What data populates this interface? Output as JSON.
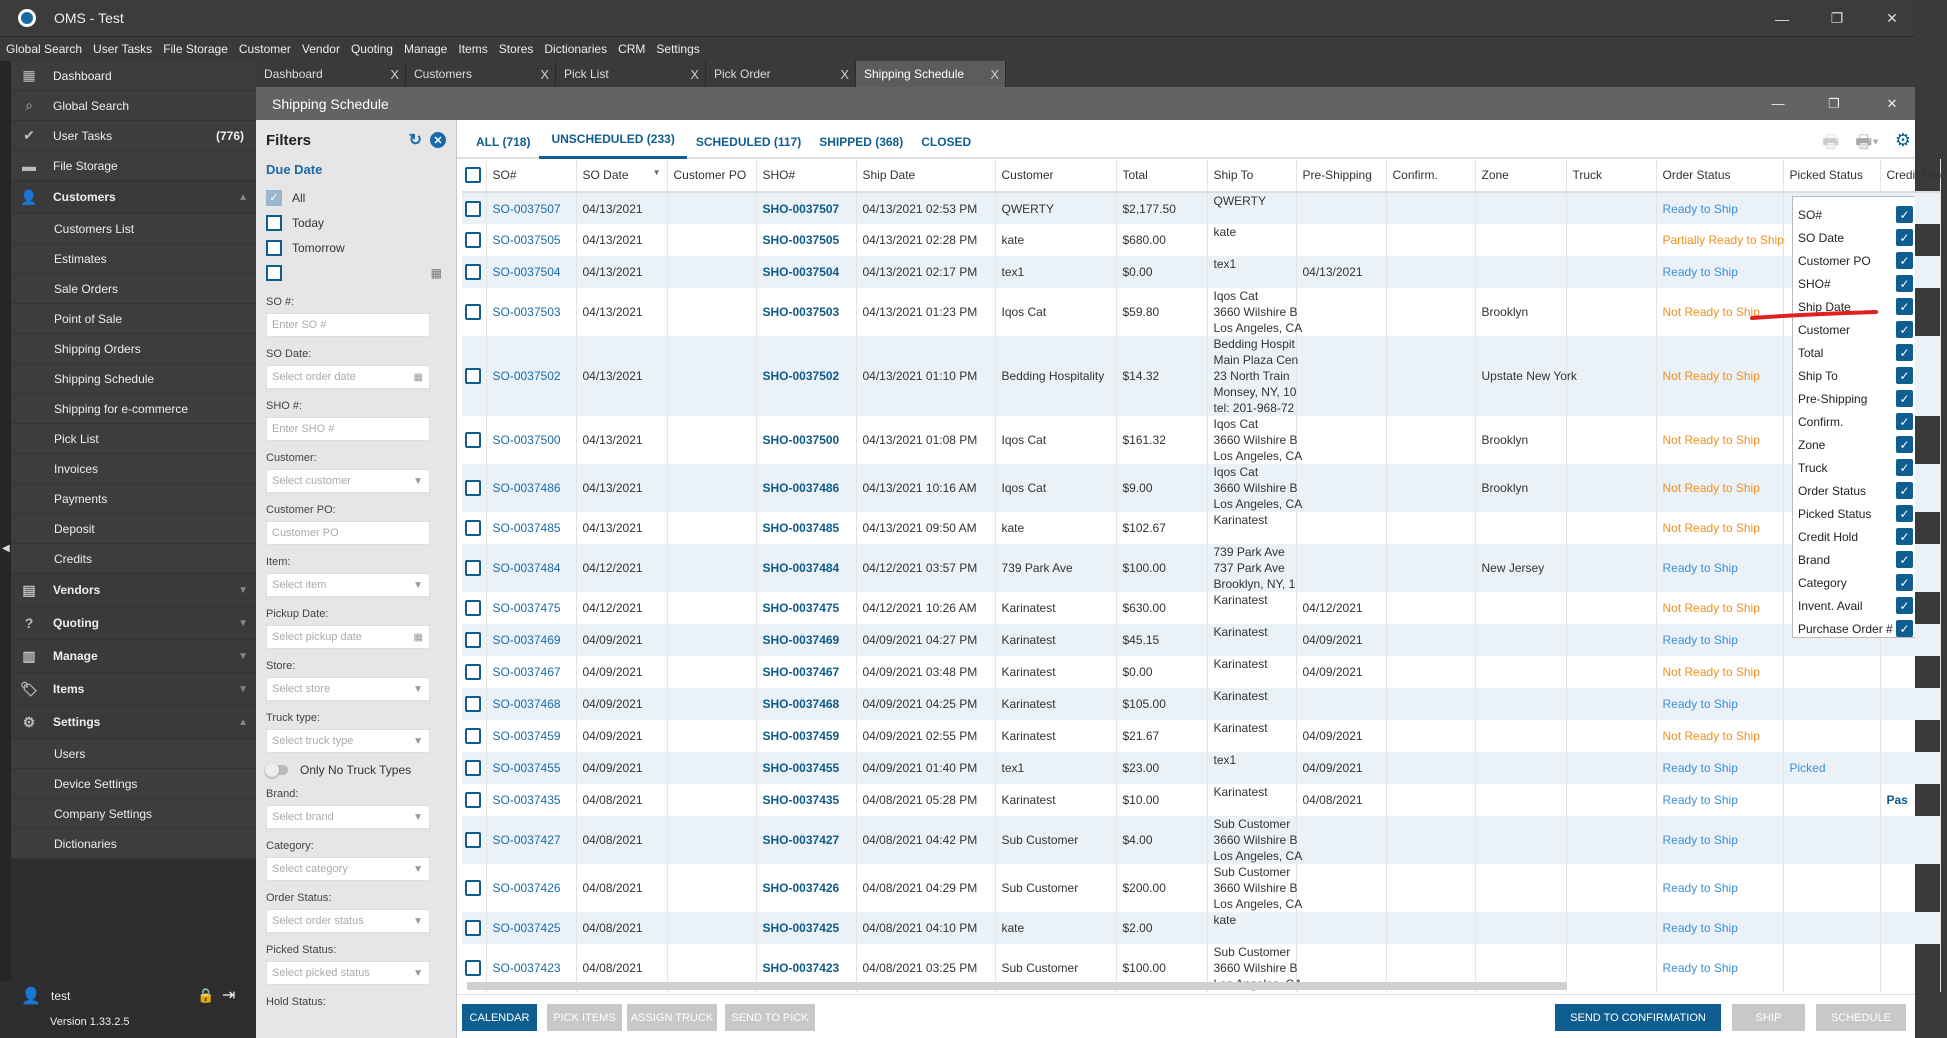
{
  "app": {
    "title": "OMS - Test"
  },
  "menu": [
    "Global Search",
    "User Tasks",
    "File Storage",
    "Customer",
    "Vendor",
    "Quoting",
    "Manage",
    "Items",
    "Stores",
    "Dictionaries",
    "CRM",
    "Settings"
  ],
  "sidebar": {
    "items": [
      {
        "label": "Dashboard",
        "icon": "dashboard-icon",
        "type": "top"
      },
      {
        "label": "Global Search",
        "icon": "search-icon",
        "type": "top"
      },
      {
        "label": "User Tasks",
        "icon": "check-circle-icon",
        "type": "top",
        "count": "(776)"
      },
      {
        "label": "File Storage",
        "icon": "folder-icon",
        "type": "top"
      },
      {
        "label": "Customers",
        "icon": "user-icon",
        "type": "group",
        "open": true
      },
      {
        "label": "Customers List",
        "type": "sub"
      },
      {
        "label": "Estimates",
        "type": "sub"
      },
      {
        "label": "Sale Orders",
        "type": "sub"
      },
      {
        "label": "Point of Sale",
        "type": "sub"
      },
      {
        "label": "Shipping Orders",
        "type": "sub"
      },
      {
        "label": "Shipping Schedule",
        "type": "sub"
      },
      {
        "label": "Shipping for e-commerce",
        "type": "sub"
      },
      {
        "label": "Pick List",
        "type": "sub"
      },
      {
        "label": "Invoices",
        "type": "sub"
      },
      {
        "label": "Payments",
        "type": "sub"
      },
      {
        "label": "Deposit",
        "type": "sub"
      },
      {
        "label": "Credits",
        "type": "sub"
      },
      {
        "label": "Vendors",
        "icon": "store-icon",
        "type": "group"
      },
      {
        "label": "Quoting",
        "icon": "quote-icon",
        "type": "group"
      },
      {
        "label": "Manage",
        "icon": "clipboard-icon",
        "type": "group"
      },
      {
        "label": "Items",
        "icon": "tag-icon",
        "type": "group"
      },
      {
        "label": "Settings",
        "icon": "gear-icon",
        "type": "group",
        "open": true
      },
      {
        "label": "Users",
        "type": "sub"
      },
      {
        "label": "Device Settings",
        "type": "sub"
      },
      {
        "label": "Company Settings",
        "type": "sub"
      },
      {
        "label": "Dictionaries",
        "type": "sub"
      }
    ],
    "user": "test",
    "version": "Version 1.33.2.5"
  },
  "tabs": [
    {
      "label": "Dashboard"
    },
    {
      "label": "Customers"
    },
    {
      "label": "Pick List"
    },
    {
      "label": "Pick Order"
    },
    {
      "label": "Shipping Schedule",
      "active": true
    }
  ],
  "window": {
    "title": "Shipping Schedule"
  },
  "filters": {
    "title": "Filters",
    "due_date": "Due Date",
    "due_options": [
      {
        "label": "All",
        "checked": true
      },
      {
        "label": "Today"
      },
      {
        "label": "Tomorrow"
      },
      {
        "label": ""
      }
    ],
    "fields": [
      {
        "label": "SO #:",
        "placeholder": "Enter SO #"
      },
      {
        "label": "SO Date:",
        "placeholder": "Select order date",
        "icon": "calendar"
      },
      {
        "label": "SHO #:",
        "placeholder": "Enter SHO #"
      },
      {
        "label": "Customer:",
        "placeholder": "Select customer",
        "icon": "dropdown"
      },
      {
        "label": "Customer PO:",
        "placeholder": "Customer PO"
      },
      {
        "label": "Item:",
        "placeholder": "Select item",
        "icon": "dropdown"
      },
      {
        "label": "Pickup Date:",
        "placeholder": "Select pickup date",
        "icon": "calendar"
      },
      {
        "label": "Store:",
        "placeholder": "Select store",
        "icon": "dropdown"
      },
      {
        "label": "Truck type:",
        "placeholder": "Select truck type",
        "icon": "dropdown"
      }
    ],
    "toggle_label": "Only No Truck Types",
    "fields2": [
      {
        "label": "Brand:",
        "placeholder": "Select brand",
        "icon": "dropdown"
      },
      {
        "label": "Category:",
        "placeholder": "Select category",
        "icon": "dropdown"
      },
      {
        "label": "Order Status:",
        "placeholder": "Select order status",
        "icon": "dropdown"
      },
      {
        "label": "Picked Status:",
        "placeholder": "Select picked status",
        "icon": "dropdown"
      }
    ],
    "hold_status_label": "Hold Status:"
  },
  "status_tabs": [
    {
      "label": "ALL (718)"
    },
    {
      "label": "UNSCHEDULED (233)",
      "active": true
    },
    {
      "label": "SCHEDULED (117)"
    },
    {
      "label": "SHIPPED (368)"
    },
    {
      "label": "CLOSED"
    }
  ],
  "columns": [
    "SO#",
    "SO Date",
    "Customer PO",
    "SHO#",
    "Ship Date",
    "Customer",
    "Total",
    "Ship To",
    "Pre-Shipping",
    "Confirm.",
    "Zone",
    "Truck",
    "Order Status",
    "Picked Status",
    "Credit Hold"
  ],
  "rows": [
    {
      "so": "SO-0037507",
      "so_date": "04/13/2021",
      "po": "",
      "sho": "SHO-0037507",
      "ship_date": "04/13/2021 02:53 PM",
      "customer": "QWERTY",
      "total": "$2,177.50",
      "ship_to": [
        "QWERTY"
      ],
      "pre": "",
      "zone": "",
      "status": "Ready to Ship",
      "picked": "",
      "credit": ""
    },
    {
      "so": "SO-0037505",
      "so_date": "04/13/2021",
      "po": "",
      "sho": "SHO-0037505",
      "ship_date": "04/13/2021 02:28 PM",
      "customer": "kate",
      "total": "$680.00",
      "ship_to": [
        "kate"
      ],
      "pre": "",
      "zone": "",
      "status": "Partially Ready to Ship",
      "picked": "",
      "credit": ""
    },
    {
      "so": "SO-0037504",
      "so_date": "04/13/2021",
      "po": "",
      "sho": "SHO-0037504",
      "ship_date": "04/13/2021 02:17 PM",
      "customer": "tex1",
      "total": "$0.00",
      "ship_to": [
        "tex1"
      ],
      "pre": "04/13/2021",
      "zone": "",
      "status": "Ready to Ship",
      "picked": "",
      "credit": ""
    },
    {
      "so": "SO-0037503",
      "so_date": "04/13/2021",
      "po": "",
      "sho": "SHO-0037503",
      "ship_date": "04/13/2021 01:23 PM",
      "customer": "Iqos Cat",
      "total": "$59.80",
      "ship_to": [
        "Iqos Cat",
        "3660 Wilshire B",
        "Los Angeles, CA"
      ],
      "pre": "",
      "zone": "Brooklyn",
      "status": "Not Ready to Ship",
      "picked": "",
      "credit": ""
    },
    {
      "so": "SO-0037502",
      "so_date": "04/13/2021",
      "po": "",
      "sho": "SHO-0037502",
      "ship_date": "04/13/2021 01:10 PM",
      "customer": "Bedding Hospitality",
      "total": "$14.32",
      "ship_to": [
        "Bedding Hospit",
        "Main Plaza Cen",
        "23 North Train",
        "Monsey, NY, 10",
        "tel: 201-968-72"
      ],
      "pre": "",
      "zone": "Upstate New York",
      "status": "Not Ready to Ship",
      "picked": "",
      "credit": ""
    },
    {
      "so": "SO-0037500",
      "so_date": "04/13/2021",
      "po": "",
      "sho": "SHO-0037500",
      "ship_date": "04/13/2021 01:08 PM",
      "customer": "Iqos Cat",
      "total": "$161.32",
      "ship_to": [
        "Iqos Cat",
        "3660 Wilshire B",
        "Los Angeles, CA"
      ],
      "pre": "",
      "zone": "Brooklyn",
      "status": "Not Ready to Ship",
      "picked": "",
      "credit": ""
    },
    {
      "so": "SO-0037486",
      "so_date": "04/13/2021",
      "po": "",
      "sho": "SHO-0037486",
      "ship_date": "04/13/2021 10:16 AM",
      "customer": "Iqos Cat",
      "total": "$9.00",
      "ship_to": [
        "Iqos Cat",
        "3660 Wilshire B",
        "Los Angeles, CA"
      ],
      "pre": "",
      "zone": "Brooklyn",
      "status": "Not Ready to Ship",
      "picked": "",
      "credit": ""
    },
    {
      "so": "SO-0037485",
      "so_date": "04/13/2021",
      "po": "",
      "sho": "SHO-0037485",
      "ship_date": "04/13/2021 09:50 AM",
      "customer": "kate",
      "total": "$102.67",
      "ship_to": [
        "Karinatest"
      ],
      "pre": "",
      "zone": "",
      "status": "Not Ready to Ship",
      "picked": "",
      "credit": ""
    },
    {
      "so": "SO-0037484",
      "so_date": "04/12/2021",
      "po": "",
      "sho": "SHO-0037484",
      "ship_date": "04/12/2021 03:57 PM",
      "customer": "739 Park Ave",
      "total": "$100.00",
      "ship_to": [
        "739 Park Ave",
        "737 Park Ave",
        "Brooklyn, NY, 1"
      ],
      "pre": "",
      "zone": "New Jersey",
      "status": "Ready to Ship",
      "picked": "",
      "credit": ""
    },
    {
      "so": "SO-0037475",
      "so_date": "04/12/2021",
      "po": "",
      "sho": "SHO-0037475",
      "ship_date": "04/12/2021 10:26 AM",
      "customer": "Karinatest",
      "total": "$630.00",
      "ship_to": [
        "Karinatest"
      ],
      "pre": "04/12/2021",
      "zone": "",
      "status": "Not Ready to Ship",
      "picked": "",
      "credit": ""
    },
    {
      "so": "SO-0037469",
      "so_date": "04/09/2021",
      "po": "",
      "sho": "SHO-0037469",
      "ship_date": "04/09/2021 04:27 PM",
      "customer": "Karinatest",
      "total": "$45.15",
      "ship_to": [
        "Karinatest"
      ],
      "pre": "04/09/2021",
      "zone": "",
      "status": "Ready to Ship",
      "picked": "",
      "credit": ""
    },
    {
      "so": "SO-0037467",
      "so_date": "04/09/2021",
      "po": "",
      "sho": "SHO-0037467",
      "ship_date": "04/09/2021 03:48 PM",
      "customer": "Karinatest",
      "total": "$0.00",
      "ship_to": [
        "Karinatest"
      ],
      "pre": "04/09/2021",
      "zone": "",
      "status": "Not Ready to Ship",
      "picked": "",
      "credit": ""
    },
    {
      "so": "SO-0037468",
      "so_date": "04/09/2021",
      "po": "",
      "sho": "SHO-0037468",
      "ship_date": "04/09/2021 04:25 PM",
      "customer": "Karinatest",
      "total": "$105.00",
      "ship_to": [
        "Karinatest"
      ],
      "pre": "",
      "zone": "",
      "status": "Ready to Ship",
      "picked": "",
      "credit": ""
    },
    {
      "so": "SO-0037459",
      "so_date": "04/09/2021",
      "po": "",
      "sho": "SHO-0037459",
      "ship_date": "04/09/2021 02:55 PM",
      "customer": "Karinatest",
      "total": "$21.67",
      "ship_to": [
        "Karinatest"
      ],
      "pre": "04/09/2021",
      "zone": "",
      "status": "Not Ready to Ship",
      "picked": "",
      "credit": ""
    },
    {
      "so": "SO-0037455",
      "so_date": "04/09/2021",
      "po": "",
      "sho": "SHO-0037455",
      "ship_date": "04/09/2021 01:40 PM",
      "customer": "tex1",
      "total": "$23.00",
      "ship_to": [
        "tex1"
      ],
      "pre": "04/09/2021",
      "zone": "",
      "status": "Ready to Ship",
      "picked": "Picked",
      "credit": ""
    },
    {
      "so": "SO-0037435",
      "so_date": "04/08/2021",
      "po": "",
      "sho": "SHO-0037435",
      "ship_date": "04/08/2021 05:28 PM",
      "customer": "Karinatest",
      "total": "$10.00",
      "ship_to": [
        "Karinatest"
      ],
      "pre": "04/08/2021",
      "zone": "",
      "status": "Ready to Ship",
      "picked": "",
      "credit": "Pas"
    },
    {
      "so": "SO-0037427",
      "so_date": "04/08/2021",
      "po": "",
      "sho": "SHO-0037427",
      "ship_date": "04/08/2021 04:42 PM",
      "customer": "Sub Customer",
      "total": "$4.00",
      "ship_to": [
        "Sub Customer",
        "3660 Wilshire B",
        "Los Angeles, CA"
      ],
      "pre": "",
      "zone": "",
      "status": "Ready to Ship",
      "picked": "",
      "credit": ""
    },
    {
      "so": "SO-0037426",
      "so_date": "04/08/2021",
      "po": "",
      "sho": "SHO-0037426",
      "ship_date": "04/08/2021 04:29 PM",
      "customer": "Sub Customer",
      "total": "$200.00",
      "ship_to": [
        "Sub Customer",
        "3660 Wilshire B",
        "Los Angeles, CA"
      ],
      "pre": "",
      "zone": "",
      "status": "Ready to Ship",
      "picked": "",
      "credit": ""
    },
    {
      "so": "SO-0037425",
      "so_date": "04/08/2021",
      "po": "",
      "sho": "SHO-0037425",
      "ship_date": "04/08/2021 04:10 PM",
      "customer": "kate",
      "total": "$2.00",
      "ship_to": [
        "kate"
      ],
      "pre": "",
      "zone": "",
      "status": "Ready to Ship",
      "picked": "",
      "credit": ""
    },
    {
      "so": "SO-0037423",
      "so_date": "04/08/2021",
      "po": "",
      "sho": "SHO-0037423",
      "ship_date": "04/08/2021 03:25 PM",
      "customer": "Sub Customer",
      "total": "$100.00",
      "ship_to": [
        "Sub Customer",
        "3660 Wilshire B",
        "Los Angeles, CA"
      ],
      "pre": "",
      "zone": "",
      "status": "Ready to Ship",
      "picked": "",
      "credit": ""
    }
  ],
  "column_chooser": [
    "SO#",
    "SO Date",
    "Customer PO",
    "SHO#",
    "Ship Date",
    "Customer",
    "Total",
    "Ship To",
    "Pre-Shipping",
    "Confirm.",
    "Zone",
    "Truck",
    "Order Status",
    "Picked Status",
    "Credit Hold",
    "Brand",
    "Category",
    "Invent. Avail",
    "Purchase Order #"
  ],
  "buttons_left": [
    {
      "label": "Calendar",
      "enabled": true
    },
    {
      "label": "Pick Items"
    },
    {
      "label": "Assign Truck"
    },
    {
      "label": "Send to Pick"
    }
  ],
  "buttons_right": [
    {
      "label": "Send to Confirmation",
      "enabled": true
    },
    {
      "label": "Ship"
    },
    {
      "label": "Schedule"
    }
  ],
  "colors": {
    "accent": "#0f5e91",
    "link": "#1a6aa8",
    "ready": "#3c8fd8",
    "not_ready": "#f0901e",
    "row_alt": "#eaf2f8"
  }
}
